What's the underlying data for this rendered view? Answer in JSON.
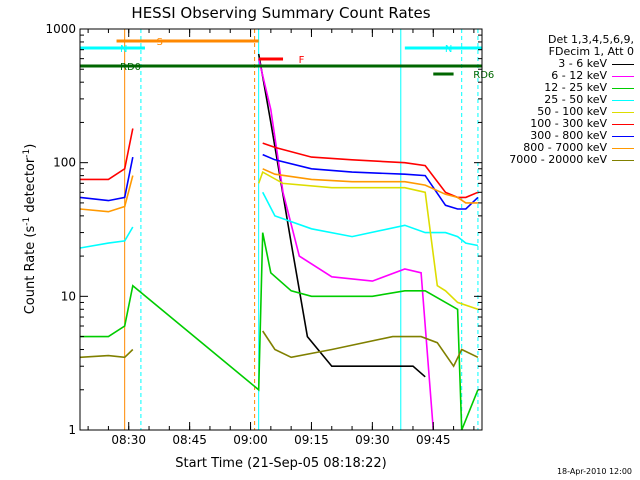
{
  "chart_data": {
    "type": "line",
    "title": "HESSI Observing Summary Count Rates",
    "xlabel": "Start Time (21-Sep-05 08:18:22)",
    "ylabel_main": "Count Rate (s",
    "ylabel_sup1": "-1",
    "ylabel_mid": " detector",
    "ylabel_sup2": "-1",
    "ylabel_end": ")",
    "yscale": "log",
    "ylim": [
      1,
      1000
    ],
    "xlim": [
      "08:18",
      "09:57"
    ],
    "x_ticks": [
      "08:30",
      "08:45",
      "09:00",
      "09:15",
      "09:30",
      "09:45"
    ],
    "y_ticks": [
      "1",
      "10",
      "100",
      "1000"
    ],
    "legend_header": [
      "Det 1,3,4,5,6,9,",
      "FDecim 1, Att 0"
    ],
    "series": [
      {
        "name": "3 - 6 keV",
        "color": "#000000",
        "x": [
          "08:18",
          "08:25",
          "08:29",
          "08:31",
          "09:01",
          "09:02",
          "09:05",
          "09:10",
          "09:14",
          "09:20",
          "09:30",
          "09:40",
          "09:43",
          "09:53"
        ],
        "y": [
          null,
          null,
          null,
          null,
          null,
          650,
          200,
          25,
          5,
          3,
          3,
          3,
          2.5,
          null
        ]
      },
      {
        "name": "6 - 12 keV",
        "color": "#ff00ff",
        "x": [
          "09:02",
          "09:05",
          "09:08",
          "09:12",
          "09:20",
          "09:30",
          "09:38",
          "09:42",
          "09:45"
        ],
        "y": [
          600,
          250,
          60,
          20,
          14,
          13,
          16,
          15,
          1
        ]
      },
      {
        "name": "12 - 25 keV",
        "color": "#00cc00",
        "x": [
          "08:18",
          "08:25",
          "08:29",
          "08:31",
          "09:02",
          "09:03",
          "09:05",
          "09:10",
          "09:15",
          "09:30",
          "09:38",
          "09:43",
          "09:51",
          "09:52",
          "09:56"
        ],
        "y": [
          5,
          5,
          6,
          12,
          2,
          30,
          15,
          11,
          10,
          10,
          11,
          11,
          8,
          1,
          2
        ]
      },
      {
        "name": "25 - 50 keV",
        "color": "#00ffff",
        "x": [
          "08:18",
          "08:25",
          "08:29",
          "08:31",
          "09:02",
          "09:03",
          "09:06",
          "09:15",
          "09:25",
          "09:38",
          "09:43",
          "09:48",
          "09:51",
          "09:53",
          "09:56"
        ],
        "y": [
          23,
          25,
          26,
          33,
          null,
          60,
          40,
          32,
          28,
          34,
          30,
          30,
          28,
          25,
          24
        ]
      },
      {
        "name": "50 - 100 keV",
        "color": "#dddd00",
        "x": [
          "09:02",
          "09:03",
          "09:08",
          "09:20",
          "09:38",
          "09:43",
          "09:46",
          "09:48",
          "09:51",
          "09:56"
        ],
        "y": [
          70,
          85,
          70,
          65,
          65,
          60,
          12,
          11,
          9,
          8
        ]
      },
      {
        "name": "100 - 300 keV",
        "color": "#ff0000",
        "x": [
          "08:18",
          "08:25",
          "08:29",
          "08:31",
          "09:02",
          "09:03",
          "09:06",
          "09:15",
          "09:25",
          "09:38",
          "09:43",
          "09:48",
          "09:51",
          "09:53",
          "09:56"
        ],
        "y": [
          75,
          75,
          90,
          180,
          null,
          140,
          130,
          110,
          105,
          100,
          95,
          60,
          55,
          55,
          60
        ]
      },
      {
        "name": "300 - 800 keV",
        "color": "#0000ff",
        "x": [
          "08:18",
          "08:25",
          "08:29",
          "08:31",
          "09:02",
          "09:03",
          "09:06",
          "09:15",
          "09:25",
          "09:38",
          "09:43",
          "09:48",
          "09:51",
          "09:53",
          "09:56"
        ],
        "y": [
          55,
          52,
          55,
          110,
          null,
          115,
          105,
          90,
          85,
          82,
          80,
          48,
          45,
          45,
          55
        ]
      },
      {
        "name": "800 - 7000 keV",
        "color": "#ff9900",
        "x": [
          "08:18",
          "08:25",
          "08:29",
          "08:31",
          "09:02",
          "09:03",
          "09:06",
          "09:15",
          "09:25",
          "09:38",
          "09:43",
          "09:48",
          "09:51",
          "09:53",
          "09:56"
        ],
        "y": [
          45,
          43,
          47,
          80,
          null,
          90,
          82,
          75,
          72,
          72,
          68,
          58,
          55,
          50,
          50
        ]
      },
      {
        "name": "7000 - 20000 keV",
        "color": "#808000",
        "x": [
          "08:18",
          "08:25",
          "08:29",
          "08:31",
          "09:02",
          "09:03",
          "09:06",
          "09:10",
          "09:20",
          "09:35",
          "09:42",
          "09:46",
          "09:50",
          "09:52",
          "09:56"
        ],
        "y": [
          3.5,
          3.6,
          3.5,
          4,
          null,
          5.5,
          4,
          3.5,
          4,
          5,
          5,
          4.5,
          3,
          4,
          3.5
        ]
      }
    ],
    "bars": [
      {
        "label": "S",
        "color": "#ff8800",
        "start": "08:27",
        "end": "09:02"
      },
      {
        "label": "N",
        "color": "#00ffff",
        "start": "08:18",
        "end": "08:34"
      },
      {
        "label": "N",
        "color": "#00ffff",
        "start": "09:38",
        "end": "09:57"
      },
      {
        "label": "F",
        "color": "#ff0000",
        "start": "09:02",
        "end": "09:08"
      },
      {
        "label": "RD0",
        "color": "#006600",
        "start": "08:18",
        "end": "09:57"
      },
      {
        "label": "RD6",
        "color": "#006600",
        "start": "09:45",
        "end": "09:50"
      }
    ],
    "vertical_lines": [
      {
        "x": "08:18",
        "color": "#00ffff",
        "style": "solid"
      },
      {
        "x": "08:29",
        "color": "#ff8800",
        "style": "solid"
      },
      {
        "x": "08:33",
        "color": "#00ffff",
        "style": "dashed"
      },
      {
        "x": "09:01",
        "color": "#ff8800",
        "style": "dashed"
      },
      {
        "x": "09:02",
        "color": "#00ffff",
        "style": "solid"
      },
      {
        "x": "09:37",
        "color": "#00ffff",
        "style": "solid"
      },
      {
        "x": "09:52",
        "color": "#00ffff",
        "style": "dashed"
      },
      {
        "x": "09:56",
        "color": "#00ffff",
        "style": "dashed"
      }
    ],
    "legend_placement": "right",
    "grid": false
  },
  "timestamp": "18-Apr-2010 12:00"
}
